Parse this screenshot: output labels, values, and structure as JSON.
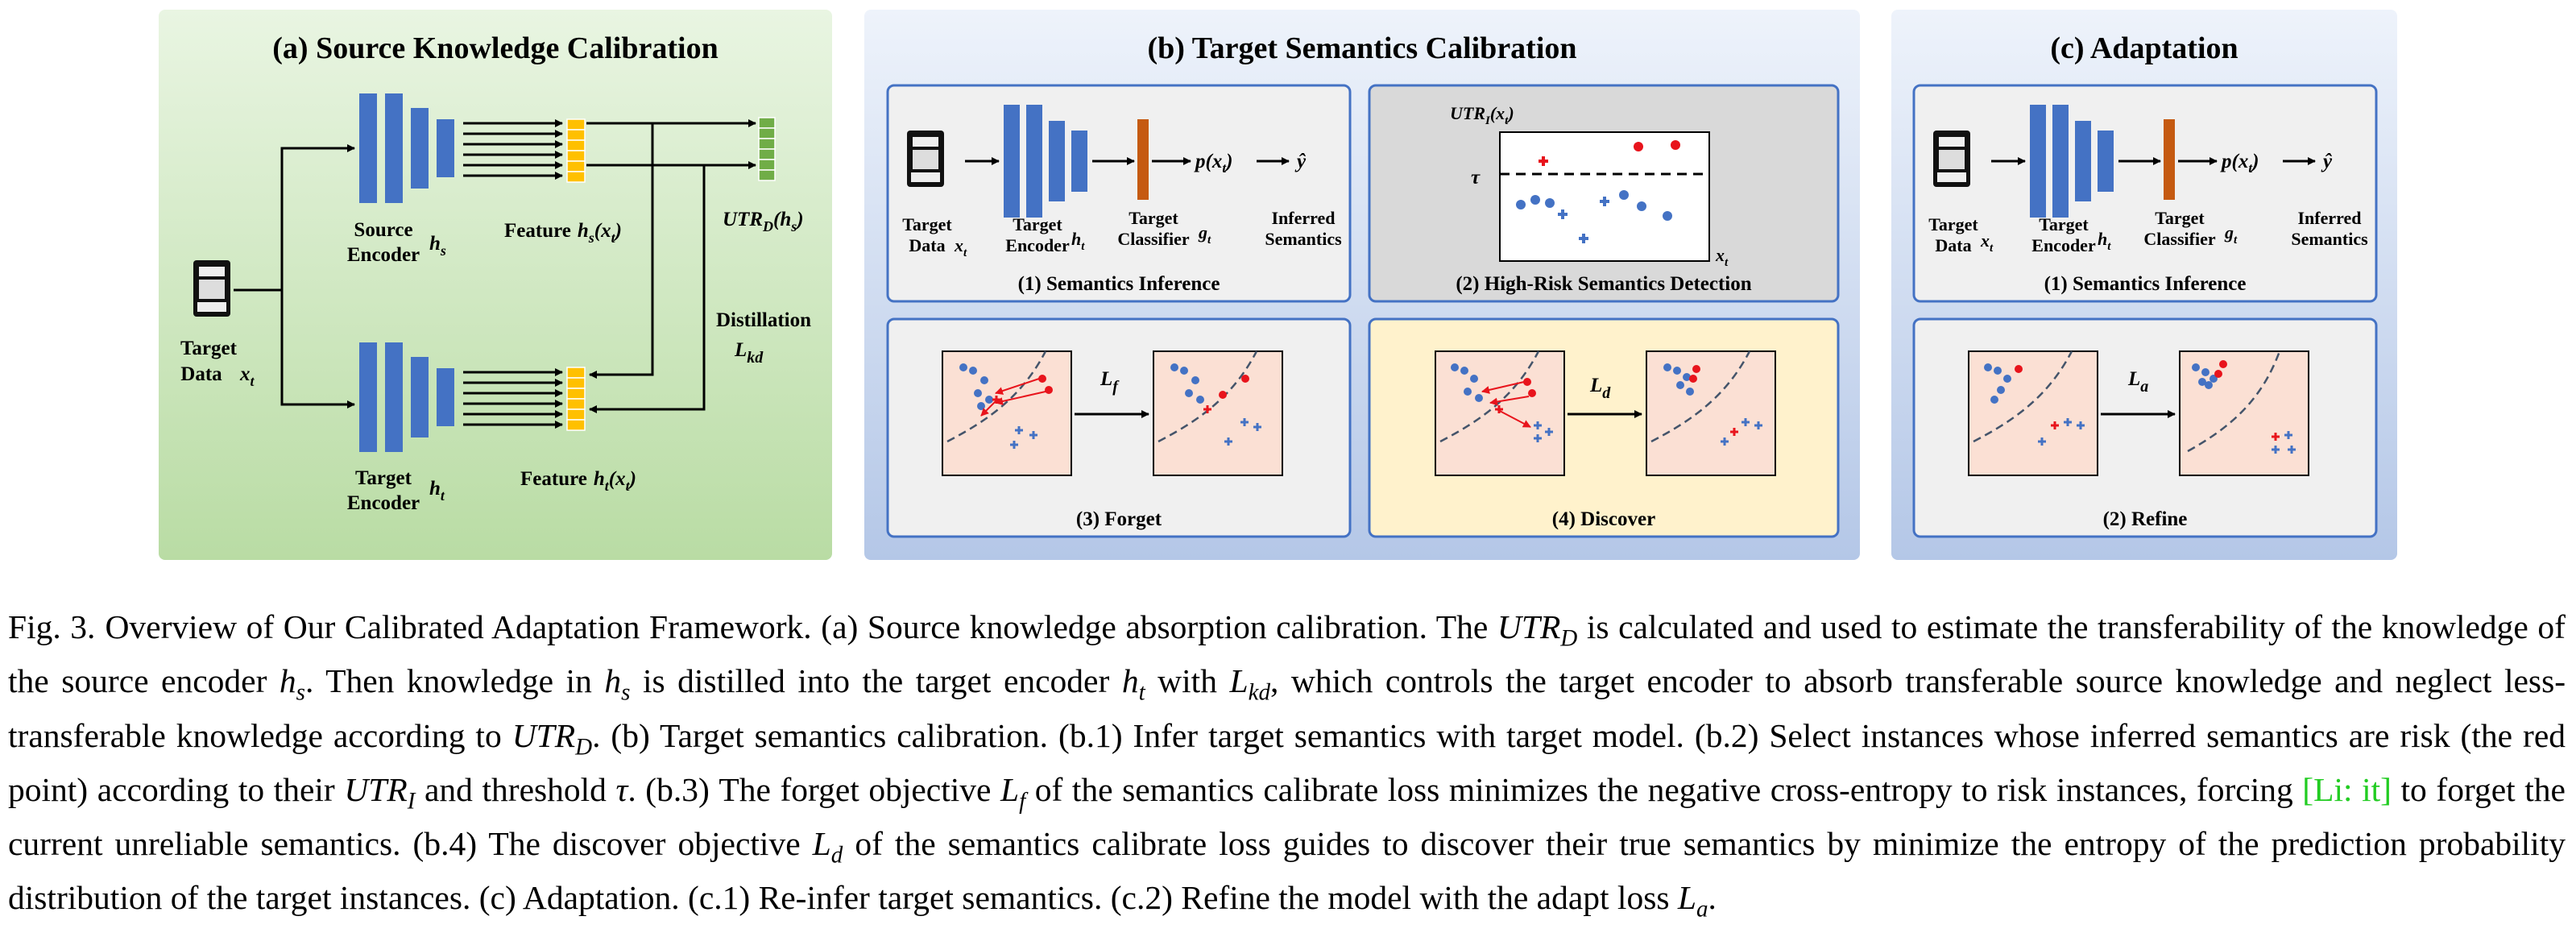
{
  "panels": {
    "a": {
      "title": "(a) Source Knowledge Calibration",
      "source_encoder": "Source",
      "source_encoder_2": "Encoder",
      "source_symbol": "h",
      "source_sub": "s",
      "feature_source": "Feature",
      "feature_source_math": "h",
      "feature_source_sub": "s",
      "feature_source_arg": "(x",
      "feature_source_arg_sub": "t",
      "feature_source_close": ")",
      "utr_label": "UTR",
      "utr_sub": "D",
      "utr_arg": "(h",
      "utr_arg_sub": "s",
      "utr_close": ")",
      "target_data": "Target",
      "target_data_2": "Data",
      "target_data_math": "x",
      "target_data_sub": "t",
      "distillation": "Distillation",
      "lkd": "L",
      "lkd_sub": "kd",
      "target_encoder": "Target",
      "target_encoder_2": "Encoder",
      "target_symbol": "h",
      "target_sub": "t",
      "feature_target": "Feature",
      "feature_target_math": "h",
      "feature_target_sub": "t",
      "feature_target_arg": "(x",
      "feature_target_arg_sub": "t",
      "feature_target_close": ")"
    },
    "b": {
      "title": "(b) Target Semantics Calibration",
      "inference": {
        "target": "Target",
        "data": "Data",
        "x": "x",
        "x_sub": "t",
        "enc_target": "Target",
        "enc_encoder": "Encoder",
        "h": "h",
        "h_sub": "t",
        "clf_target": "Target",
        "clf_classifier": "Classifier",
        "g": "g",
        "g_sub": "t",
        "p": "p(x",
        "p_sub": "t",
        "p_close": ")",
        "yhat": "ŷ",
        "inferred": "Inferred",
        "semantics": "Semantics",
        "caption": "(1) Semantics Inference"
      },
      "detection": {
        "utr": "UTR",
        "utr_sub": "I",
        "utr_arg": "(x",
        "utr_arg_sub": "t",
        "utr_close": ")",
        "tau": "τ",
        "x": "x",
        "x_sub": "t",
        "caption": "(2) High-Risk Semantics Detection"
      },
      "forget": {
        "loss": "L",
        "loss_sub": "f",
        "caption": "(3) Forget"
      },
      "discover": {
        "loss": "L",
        "loss_sub": "d",
        "caption": "(4) Discover"
      }
    },
    "c": {
      "title": "(c) Adaptation",
      "inference": {
        "target": "Target",
        "data": "Data",
        "x": "x",
        "x_sub": "t",
        "enc_target": "Target",
        "enc_encoder": "Encoder",
        "h": "h",
        "h_sub": "t",
        "clf_target": "Target",
        "clf_classifier": "Classifier",
        "g": "g",
        "g_sub": "t",
        "p": "p(x",
        "p_sub": "t",
        "p_close": ")",
        "yhat": "ŷ",
        "inferred": "Inferred",
        "semantics": "Semantics",
        "caption": "(1) Semantics Inference"
      },
      "refine": {
        "loss": "L",
        "loss_sub": "a",
        "caption": "(2) Refine"
      }
    }
  },
  "caption": {
    "label": "Fig. 3.",
    "segments": [
      {
        "t": "Overview of Our Calibrated Adaptation Framework. (a) Source knowledge absorption calibration. The ",
        "s": "plain"
      },
      {
        "t": "UTR",
        "s": "math"
      },
      {
        "t": "D",
        "s": "sub"
      },
      {
        "t": " is calculated and used to estimate the transferability of the knowledge of the source encoder ",
        "s": "plain"
      },
      {
        "t": "h",
        "s": "math"
      },
      {
        "t": "s",
        "s": "sub"
      },
      {
        "t": ". Then knowledge in ",
        "s": "plain"
      },
      {
        "t": "h",
        "s": "math"
      },
      {
        "t": "s",
        "s": "sub"
      },
      {
        "t": " is distilled into the target encoder ",
        "s": "plain"
      },
      {
        "t": "h",
        "s": "math"
      },
      {
        "t": "t",
        "s": "sub"
      },
      {
        "t": " with ",
        "s": "plain"
      },
      {
        "t": "L",
        "s": "math"
      },
      {
        "t": "kd",
        "s": "sub"
      },
      {
        "t": ", which controls the target encoder to absorb transferable source knowledge and neglect less-transferable knowledge according to ",
        "s": "plain"
      },
      {
        "t": "UTR",
        "s": "math"
      },
      {
        "t": "D",
        "s": "sub"
      },
      {
        "t": ". (b) Target semantics calibration. (b.1) Infer target semantics with target model. (b.2) Select instances whose inferred semantics are risk (the red point) according to their ",
        "s": "plain"
      },
      {
        "t": "UTR",
        "s": "math"
      },
      {
        "t": "I",
        "s": "sub"
      },
      {
        "t": " and threshold ",
        "s": "plain"
      },
      {
        "t": "τ",
        "s": "math"
      },
      {
        "t": ". (b.3) The forget objective ",
        "s": "plain"
      },
      {
        "t": "L",
        "s": "math"
      },
      {
        "t": "f",
        "s": "sub"
      },
      {
        "t": " of the semantics calibrate loss minimizes the negative cross-entropy to risk instances, forcing ",
        "s": "plain"
      },
      {
        "t": "[Li: it]",
        "s": "note"
      },
      {
        "t": " to forget the current unreliable semantics. (b.4) The discover objective ",
        "s": "plain"
      },
      {
        "t": "L",
        "s": "math"
      },
      {
        "t": "d",
        "s": "sub"
      },
      {
        "t": " of the semantics calibrate loss guides to discover their true semantics by minimize the entropy of the prediction probability distribution of the target instances. (c) Adaptation. (c.1) Re-infer target semantics. (c.2) Refine the model with the adapt loss ",
        "s": "plain"
      },
      {
        "t": "L",
        "s": "math"
      },
      {
        "t": "a",
        "s": "sub"
      },
      {
        "t": ".",
        "s": "plain"
      }
    ]
  },
  "colors": {
    "panel_a_bg": "#dbeed1",
    "panel_bc_bg": "#dde6f5",
    "panel_border": "#4472c4",
    "box_gray": "#f0f0f0",
    "box_peach": "#fbe0d4",
    "box_yellow": "#fff2cc",
    "encoder_blue": "#4472c4",
    "feature_yellow": "#ffc000",
    "utr_green": "#70ad47",
    "classifier_orange": "#c55a11",
    "risk_red": "#e8141c",
    "note_green": "#22cc22"
  }
}
